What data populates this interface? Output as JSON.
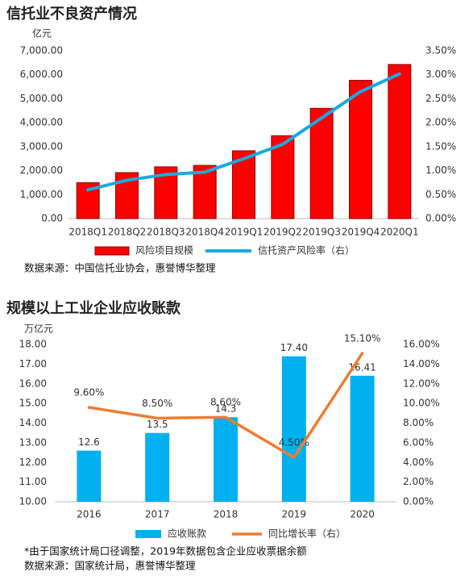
{
  "chart_data": [
    {
      "type": "bar",
      "title": "信托业不良资产情况",
      "y_unit": "亿元",
      "categories": [
        "2018Q1",
        "2018Q2",
        "2018Q3",
        "2018Q4",
        "2019Q1",
        "2019Q2",
        "2019Q3",
        "2019Q4",
        "2020Q1"
      ],
      "series": [
        {
          "name": "风险项目规模",
          "type": "bar",
          "color": "#ff0000",
          "values": [
            1500,
            1920,
            2160,
            2220,
            2830,
            3460,
            4600,
            5770,
            6430
          ]
        },
        {
          "name": "信托资产风险率（右）",
          "type": "line",
          "axis": "y2",
          "color": "#1aa9e0",
          "values": [
            0.6,
            0.8,
            0.92,
            0.97,
            1.25,
            1.55,
            2.1,
            2.65,
            3.02
          ]
        }
      ],
      "ylim": [
        0,
        7000
      ],
      "yticks": [
        {
          "value": 0,
          "label": "0.00"
        },
        {
          "value": 1000,
          "label": "1,000.00"
        },
        {
          "value": 2000,
          "label": "2,000.00"
        },
        {
          "value": 3000,
          "label": "3,000.00"
        },
        {
          "value": 4000,
          "label": "4,000.00"
        },
        {
          "value": 5000,
          "label": "5,000.00"
        },
        {
          "value": 6000,
          "label": "6,000.00"
        },
        {
          "value": 7000,
          "label": "7,000.00"
        }
      ],
      "y2lim": [
        0,
        3.5
      ],
      "y2ticks": [
        {
          "value": 0,
          "label": "0.00%"
        },
        {
          "value": 0.5,
          "label": "0.50%"
        },
        {
          "value": 1,
          "label": "1.00%"
        },
        {
          "value": 1.5,
          "label": "1.50%"
        },
        {
          "value": 2,
          "label": "2.00%"
        },
        {
          "value": 2.5,
          "label": "2.50%"
        },
        {
          "value": 3,
          "label": "3.00%"
        },
        {
          "value": 3.5,
          "label": "3.50%"
        }
      ],
      "grid": false,
      "notes": [
        "数据来源：中国信托业协会，惠誉博华整理"
      ]
    },
    {
      "type": "bar",
      "title": "规模以上工业企业应收账款",
      "y_unit": "万亿元",
      "categories": [
        "2016",
        "2017",
        "2018",
        "2019",
        "2020"
      ],
      "series": [
        {
          "name": "应收账款",
          "type": "bar",
          "color": "#00b0f0",
          "values": [
            12.6,
            13.5,
            14.3,
            17.4,
            16.41
          ],
          "value_labels": [
            "12.6",
            "13.5",
            "14.3",
            "17.40",
            "16.41"
          ]
        },
        {
          "name": "同比增长率（右）",
          "type": "line",
          "axis": "y2",
          "color": "#ed7d31",
          "values": [
            9.6,
            8.5,
            8.6,
            4.5,
            15.1
          ],
          "value_labels": [
            "9.60%",
            "8.50%",
            "8.60%",
            "4.50%",
            "15.10%"
          ]
        }
      ],
      "ylim": [
        10,
        18
      ],
      "yticks": [
        {
          "value": 10,
          "label": "10.00"
        },
        {
          "value": 11,
          "label": "11.00"
        },
        {
          "value": 12,
          "label": "12.00"
        },
        {
          "value": 13,
          "label": "13.00"
        },
        {
          "value": 14,
          "label": "14.00"
        },
        {
          "value": 15,
          "label": "15.00"
        },
        {
          "value": 16,
          "label": "16.00"
        },
        {
          "value": 17,
          "label": "17.00"
        },
        {
          "value": 18,
          "label": "18.00"
        }
      ],
      "y2lim": [
        0,
        16
      ],
      "y2ticks": [
        {
          "value": 0,
          "label": "0.00%"
        },
        {
          "value": 2,
          "label": "2.00%"
        },
        {
          "value": 4,
          "label": "4.00%"
        },
        {
          "value": 6,
          "label": "6.00%"
        },
        {
          "value": 8,
          "label": "8.00%"
        },
        {
          "value": 10,
          "label": "10.00%"
        },
        {
          "value": 12,
          "label": "12.00%"
        },
        {
          "value": 14,
          "label": "14.00%"
        },
        {
          "value": 16,
          "label": "16.00%"
        }
      ],
      "grid": false,
      "notes": [
        "*由于国家统计局口径调整，2019年数据包含企业应收票据余额",
        "数据来源：国家统计局，惠誉博华整理"
      ]
    }
  ]
}
